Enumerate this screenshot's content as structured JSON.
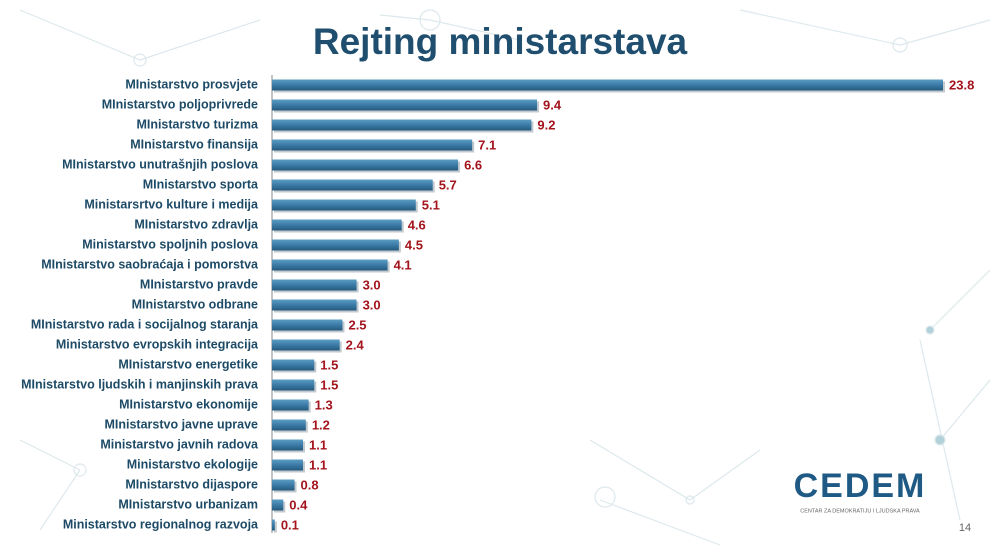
{
  "chart_data": {
    "type": "barh",
    "title": "Rejting ministarstava",
    "categories": [
      "MInistarstvo prosvjete",
      "MInistarstvo poljoprivrede",
      "MInistarstvo turizma",
      "MInistarstvo finansija",
      "MInistarstvo unutrašnjih poslova",
      "MInistarstvo sporta",
      "Ministarsrtvo kulture i medija",
      "MInistarstvo zdravlja",
      "Ministarstvo spoljnih poslova",
      "MInistarstvo saobraćaja i pomorstva",
      "MInistarstvo pravde",
      "MInistarstvo odbrane",
      "MInistarstvo rada i socijalnog staranja",
      "Ministarstvo evropskih integracija",
      "MInistarstvo energetike",
      "MInistarstvo ljudskih i manjinskih prava",
      "MInistarstvo ekonomije",
      "MInistarstvo javne uprave",
      "Ministarstvo javnih radova",
      "Ministarstvo ekologije",
      "MInistarstvo dijaspore",
      "MInistarstvo urbanizam",
      "Ministarstvo regionalnog razvoja"
    ],
    "values": [
      23.8,
      9.4,
      9.2,
      7.1,
      6.6,
      5.7,
      5.1,
      4.6,
      4.5,
      4.1,
      3.0,
      3.0,
      2.5,
      2.4,
      1.5,
      1.5,
      1.3,
      1.2,
      1.1,
      1.1,
      0.8,
      0.4,
      0.1
    ],
    "value_labels": [
      "23.8",
      "9.4",
      "9.2",
      "7.1",
      "6.6",
      "5.7",
      "5.1",
      "4.6",
      "4.5",
      "4.1",
      "3.0",
      "3.0",
      "2.5",
      "2.4",
      "1.5",
      "1.5",
      "1.3",
      "1.2",
      "1.1",
      "1.1",
      "0.8",
      "0.4",
      "0.1"
    ],
    "color": "#3b7ba6"
  },
  "logo": {
    "name": "CEDEM",
    "tagline": "CENTAR ZA DEMOKRATIJU I LJUDSKA PRAVA"
  },
  "page_number": "14"
}
